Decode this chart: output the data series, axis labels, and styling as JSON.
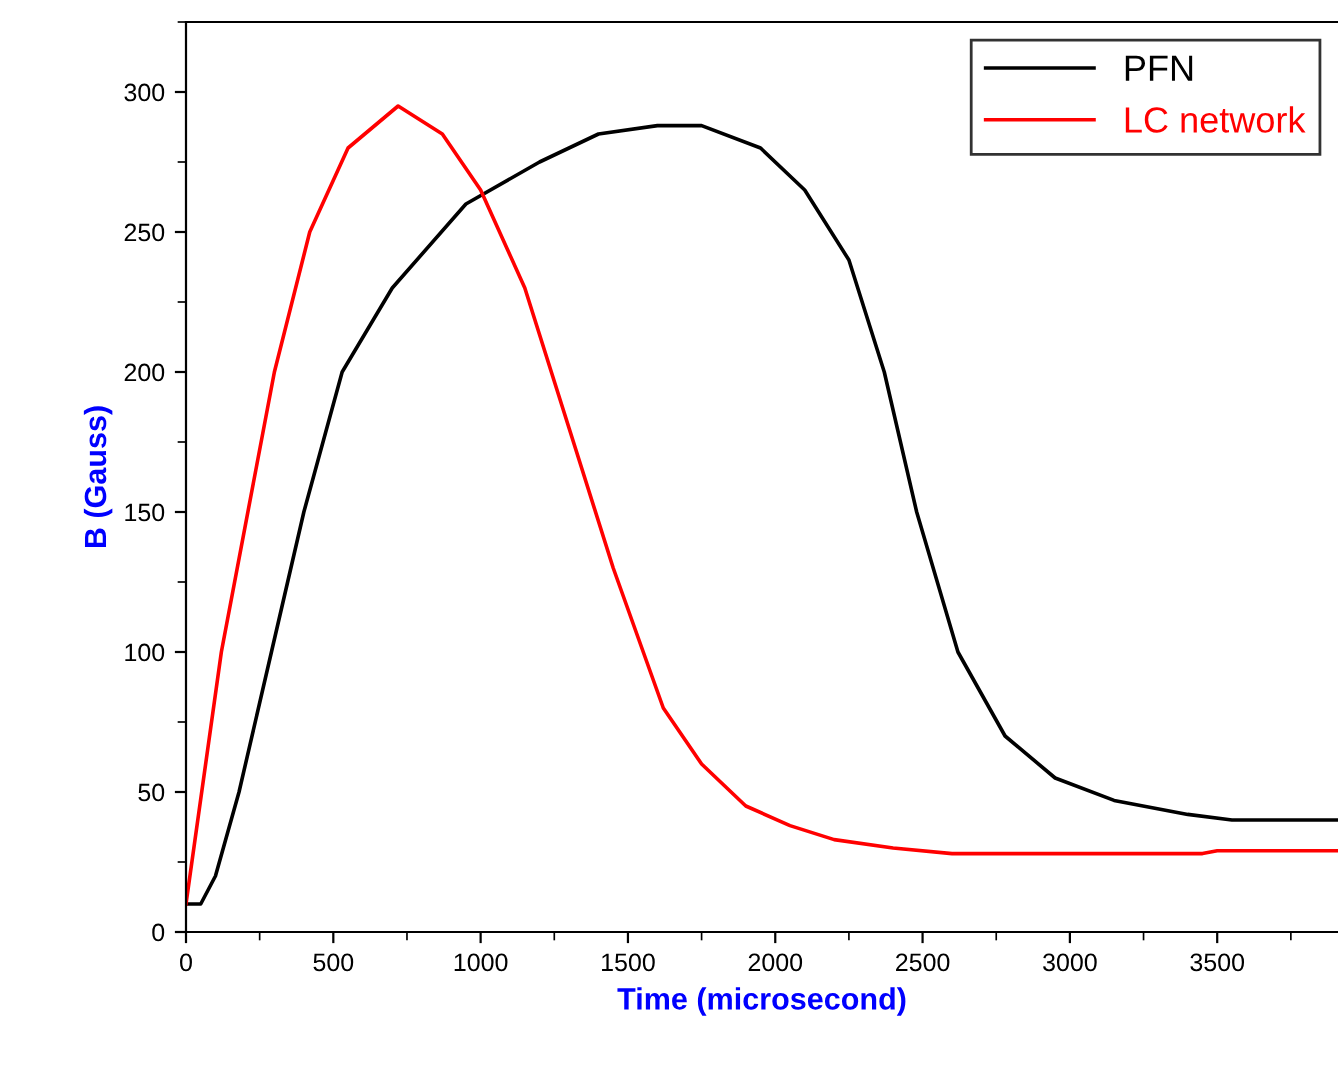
{
  "chart_data": {
    "type": "line",
    "xlabel": "Time (microsecond)",
    "ylabel": "B (Gauss)",
    "xlim": [
      0,
      3910
    ],
    "ylim": [
      0,
      325
    ],
    "xticks": [
      0,
      500,
      1000,
      1500,
      2000,
      2500,
      3000,
      3500
    ],
    "yticks": [
      0,
      50,
      100,
      150,
      200,
      250,
      300
    ],
    "legend": "top right",
    "grid": false,
    "marker": "none",
    "line_style": "solid",
    "series": [
      {
        "name": "PFN",
        "color": "#000000",
        "x": [
          0,
          50,
          100,
          180,
          290,
          400,
          530,
          700,
          950,
          1200,
          1400,
          1600,
          1750,
          1950,
          2100,
          2250,
          2370,
          2480,
          2620,
          2780,
          2950,
          3150,
          3400,
          3550,
          3910
        ],
        "values": [
          10,
          10,
          20,
          50,
          100,
          150,
          200,
          230,
          260,
          275,
          285,
          288,
          288,
          280,
          265,
          240,
          200,
          150,
          100,
          70,
          55,
          47,
          42,
          40,
          40
        ]
      },
      {
        "name": "LC network",
        "color": "#ff0000",
        "x": [
          0,
          120,
          300,
          420,
          550,
          720,
          870,
          1000,
          1150,
          1300,
          1450,
          1620,
          1750,
          1900,
          2050,
          2200,
          2400,
          2600,
          3450,
          3500,
          3910
        ],
        "values": [
          10,
          100,
          200,
          250,
          280,
          295,
          285,
          265,
          230,
          180,
          130,
          80,
          60,
          45,
          38,
          33,
          30,
          28,
          28,
          29,
          29
        ]
      }
    ]
  }
}
